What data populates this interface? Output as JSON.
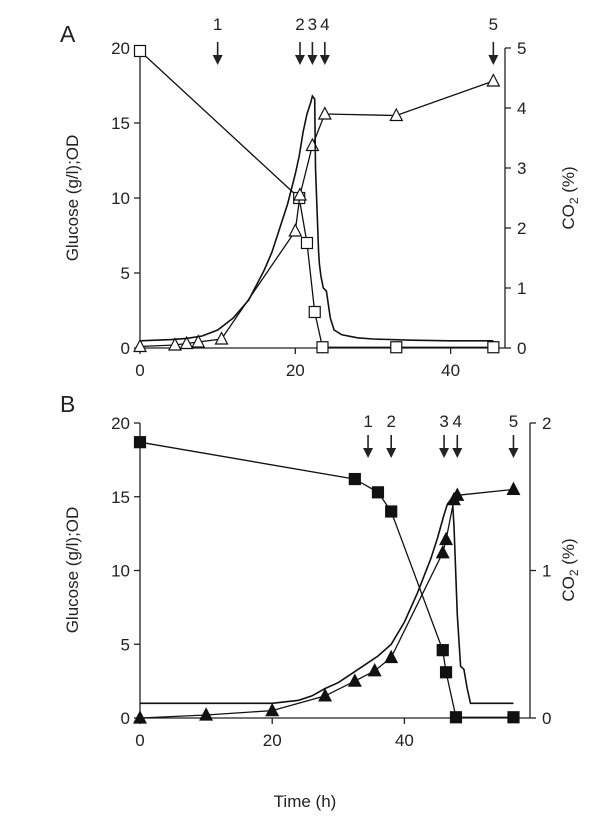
{
  "xlabel_shared": "Time (h)",
  "chart_data": [
    {
      "panel": "A",
      "type": "line",
      "x_ticks": [
        0,
        20,
        40
      ],
      "xlim": [
        0,
        47
      ],
      "ylabel_left": "Glucose (g/l);OD",
      "ylim_left": [
        0,
        20
      ],
      "y_ticks_left": [
        0,
        5,
        10,
        15,
        20
      ],
      "ylabel_right": "CO2 (%)",
      "ylim_right": [
        0,
        5
      ],
      "y_ticks_right": [
        0,
        1,
        2,
        3,
        4,
        5
      ],
      "arrows": [
        {
          "label": "1",
          "x": 10
        },
        {
          "label": "2",
          "x": 20.6
        },
        {
          "label": "3",
          "x": 22.2
        },
        {
          "label": "4",
          "x": 23.8
        },
        {
          "label": "5",
          "x": 45.5
        }
      ],
      "series": [
        {
          "name": "",
          "axis": "left",
          "marker": "open-square",
          "x": [
            0,
            20.5,
            21.5,
            22.5,
            23.5,
            33,
            45.5
          ],
          "y": [
            19.8,
            10,
            7,
            2.4,
            0.05,
            0.05,
            0.05
          ]
        },
        {
          "name": "",
          "axis": "left",
          "marker": "open-triangle",
          "x": [
            0,
            4.5,
            6,
            7.5,
            10.5,
            20,
            20.6,
            22.2,
            23.8,
            33,
            45.5
          ],
          "y": [
            0.1,
            0.2,
            0.3,
            0.4,
            0.6,
            7.8,
            10.2,
            13.5,
            15.6,
            15.5,
            17.8
          ]
        },
        {
          "name": "",
          "axis": "right",
          "marker": "none",
          "x": [
            0,
            2,
            4,
            6,
            8,
            10,
            12,
            14,
            16,
            17,
            18,
            19,
            20,
            20.5,
            21,
            21.5,
            22,
            22.2,
            22.5,
            22.6,
            23.0,
            23.1,
            23.3,
            23.6,
            24.0,
            24.5,
            25,
            26,
            28,
            30,
            35,
            40,
            45.5
          ],
          "y": [
            0.12,
            0.13,
            0.14,
            0.16,
            0.2,
            0.3,
            0.5,
            0.8,
            1.3,
            1.6,
            2.0,
            2.4,
            2.9,
            3.2,
            3.6,
            3.9,
            4.1,
            4.2,
            4.15,
            3.0,
            1.6,
            1.4,
            1.2,
            1.0,
            0.95,
            0.5,
            0.3,
            0.22,
            0.17,
            0.15,
            0.13,
            0.12,
            0.12
          ]
        }
      ]
    },
    {
      "panel": "B",
      "type": "line",
      "x_ticks": [
        0,
        20,
        40
      ],
      "xlim": [
        0,
        59
      ],
      "ylabel_left": "Glucose (g/l);OD",
      "ylim_left": [
        0,
        20
      ],
      "y_ticks_left": [
        0,
        5,
        10,
        15,
        20
      ],
      "ylabel_right": "CO2 (%)",
      "ylim_right": [
        0,
        2
      ],
      "y_ticks_right": [
        0,
        1,
        2
      ],
      "arrows": [
        {
          "label": "1",
          "x": 34.5
        },
        {
          "label": "2",
          "x": 38
        },
        {
          "label": "3",
          "x": 46
        },
        {
          "label": "4",
          "x": 48
        },
        {
          "label": "5",
          "x": 56.5
        }
      ],
      "series": [
        {
          "name": "",
          "axis": "left",
          "marker": "filled-square",
          "x": [
            0,
            32.5,
            36,
            38,
            45.8,
            46.3,
            47.8,
            56.5
          ],
          "y": [
            18.7,
            16.2,
            15.3,
            14,
            4.6,
            3.1,
            0.05,
            0.05
          ]
        },
        {
          "name": "",
          "axis": "left",
          "marker": "filled-triangle",
          "x": [
            0,
            10,
            20,
            28,
            32.5,
            35.5,
            38,
            45.8,
            46.3,
            47.5,
            48,
            56.5
          ],
          "y": [
            0,
            0.2,
            0.5,
            1.5,
            2.5,
            3.2,
            4.1,
            11.2,
            12.1,
            14.8,
            15.1,
            15.5
          ]
        },
        {
          "name": "",
          "axis": "right",
          "marker": "none",
          "x": [
            0,
            10,
            20,
            22,
            24,
            26,
            28,
            30,
            32,
            34,
            36,
            38,
            40,
            42,
            44,
            45,
            46,
            46.5,
            47,
            47.3,
            47.5,
            48,
            48.5,
            49,
            49.5,
            50,
            52,
            56.5
          ],
          "y": [
            0.1,
            0.1,
            0.1,
            0.11,
            0.12,
            0.15,
            0.2,
            0.24,
            0.3,
            0.36,
            0.42,
            0.5,
            0.65,
            0.85,
            1.08,
            1.22,
            1.38,
            1.45,
            1.48,
            1.45,
            1.3,
            0.7,
            0.35,
            0.33,
            0.2,
            0.1,
            0.1,
            0.1
          ]
        }
      ]
    }
  ]
}
